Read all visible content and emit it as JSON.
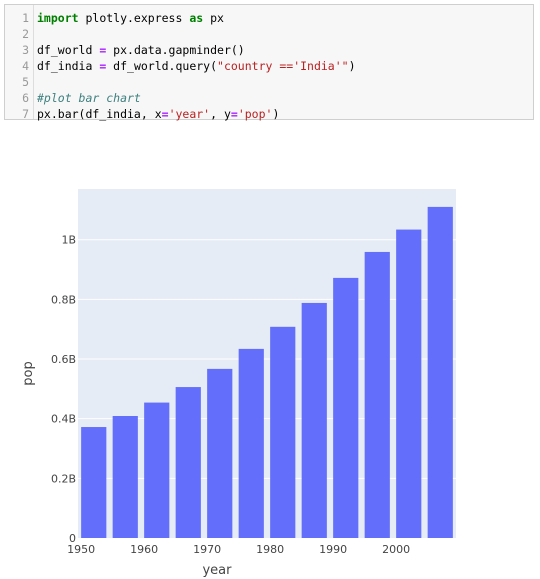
{
  "code_cell": {
    "lines": [
      {
        "n": "1",
        "parts": [
          {
            "t": "import",
            "c": "kw"
          },
          {
            "t": " plotly.express ",
            "c": ""
          },
          {
            "t": "as",
            "c": "kw"
          },
          {
            "t": " px",
            "c": ""
          }
        ]
      },
      {
        "n": "2",
        "parts": []
      },
      {
        "n": "3",
        "parts": [
          {
            "t": "df_world ",
            "c": ""
          },
          {
            "t": "=",
            "c": "op"
          },
          {
            "t": " px.data.gapminder()",
            "c": ""
          }
        ]
      },
      {
        "n": "4",
        "parts": [
          {
            "t": "df_india ",
            "c": ""
          },
          {
            "t": "=",
            "c": "op"
          },
          {
            "t": " df_world.query(",
            "c": ""
          },
          {
            "t": "\"country =='India'\"",
            "c": "str"
          },
          {
            "t": ")",
            "c": ""
          }
        ]
      },
      {
        "n": "5",
        "parts": []
      },
      {
        "n": "6",
        "parts": [
          {
            "t": "#plot bar chart",
            "c": "cm"
          }
        ]
      },
      {
        "n": "7",
        "parts": [
          {
            "t": "px.bar(df_india, x",
            "c": ""
          },
          {
            "t": "=",
            "c": "op"
          },
          {
            "t": "'year'",
            "c": "str"
          },
          {
            "t": ", y",
            "c": ""
          },
          {
            "t": "=",
            "c": "op"
          },
          {
            "t": "'pop'",
            "c": "str"
          },
          {
            "t": ")",
            "c": ""
          }
        ]
      }
    ]
  },
  "chart_data": {
    "type": "bar",
    "x": [
      1952,
      1957,
      1962,
      1967,
      1972,
      1977,
      1982,
      1987,
      1992,
      1997,
      2002,
      2007
    ],
    "values": [
      372000000,
      409000000,
      454000000,
      506000000,
      567000000,
      634000000,
      708000000,
      788000000,
      872000000,
      959000000,
      1034000000,
      1110000000
    ],
    "xlabel": "year",
    "ylabel": "pop",
    "xlim": [
      1949.5,
      2009.5
    ],
    "ylim": [
      0,
      1170000000
    ],
    "x_ticks": [
      1950,
      1960,
      1970,
      1980,
      1990,
      2000
    ],
    "x_tick_labels": [
      "1950",
      "1960",
      "1970",
      "1980",
      "1990",
      "2000"
    ],
    "y_ticks": [
      0,
      200000000,
      400000000,
      600000000,
      800000000,
      1000000000
    ],
    "y_tick_labels": [
      "0",
      "0.2B",
      "0.4B",
      "0.6B",
      "0.8B",
      "1B"
    ],
    "grid": true,
    "colors": {
      "bar": "#636efa",
      "plot_bg": "#e5ecf6",
      "grid": "#ffffff"
    }
  }
}
